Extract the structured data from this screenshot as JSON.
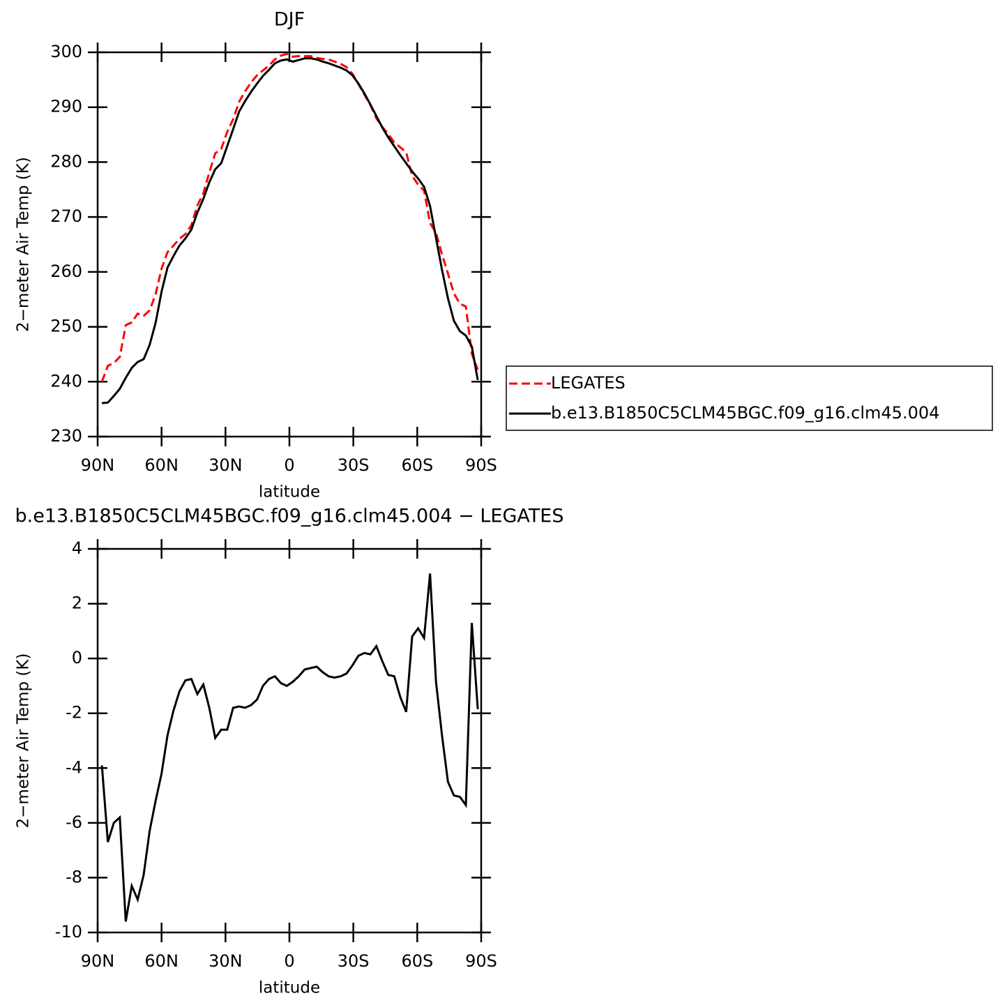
{
  "chart_data": [
    {
      "type": "line",
      "title": "DJF",
      "x_label": "latitude",
      "y_label": "2−meter Air Temp (K)",
      "x": [
        88,
        85.2,
        82.4,
        79.6,
        76.8,
        74,
        71.2,
        68.4,
        65.6,
        62.8,
        60,
        57.2,
        54.4,
        51.6,
        48.8,
        46,
        43.2,
        40.4,
        37.6,
        34.8,
        32,
        29.2,
        26.4,
        23.6,
        20.8,
        18,
        15.2,
        12.4,
        9.6,
        6.8,
        4,
        1.2,
        -1.6,
        -4.4,
        -7.2,
        -10,
        -12.8,
        -15.6,
        -18.4,
        -21.2,
        -24,
        -26.8,
        -29.6,
        -32.4,
        -35.2,
        -38,
        -40.8,
        -43.6,
        -46.4,
        -49.2,
        -52,
        -54.8,
        -57.6,
        -60.4,
        -63.2,
        -66,
        -68.8,
        -71.6,
        -74.4,
        -77.2,
        -80,
        -82.8,
        -85.6,
        -88.4
      ],
      "xlim": [
        90,
        -90
      ],
      "xticks": [
        {
          "value": 90,
          "label": "90N"
        },
        {
          "value": 60,
          "label": "60N"
        },
        {
          "value": 30,
          "label": "30N"
        },
        0,
        {
          "value": -30,
          "label": "30S"
        },
        {
          "value": -60,
          "label": "60S"
        },
        {
          "value": -90,
          "label": "90S"
        }
      ],
      "ylim": [
        230,
        300
      ],
      "yticks": [
        230,
        240,
        250,
        260,
        270,
        280,
        290,
        300
      ],
      "legend": "right",
      "series": [
        {
          "name": "LEGATES",
          "color": "#ff0000",
          "dashed": true,
          "values": [
            240.0,
            242.9,
            243.4,
            244.5,
            250.3,
            250.8,
            252.4,
            252.0,
            253.0,
            255.9,
            260.6,
            263.6,
            264.8,
            266.0,
            266.9,
            268.5,
            272.1,
            274.3,
            278.1,
            281.6,
            282.4,
            285.5,
            287.8,
            291.0,
            292.9,
            294.5,
            295.8,
            296.7,
            297.6,
            298.7,
            299.4,
            299.7,
            299.2,
            299.3,
            299.3,
            299.3,
            299.0,
            298.8,
            298.7,
            298.3,
            297.9,
            297.3,
            296.1,
            294.2,
            292.3,
            290.4,
            288.0,
            286.4,
            285.1,
            283.6,
            282.7,
            281.8,
            277.5,
            275.9,
            274.8,
            268.9,
            267.1,
            263.2,
            259.7,
            256.1,
            254.2,
            253.7,
            245.1,
            242.2
          ]
        },
        {
          "name": "b.e13.B1850C5CLM45BGC.f09_g16.clm45.004",
          "color": "#000000",
          "dashed": false,
          "values": [
            236.1,
            236.2,
            237.4,
            238.7,
            240.7,
            242.5,
            243.6,
            244.1,
            246.7,
            250.7,
            256.4,
            260.8,
            262.9,
            264.8,
            266.1,
            267.7,
            270.8,
            273.3,
            276.3,
            278.7,
            279.8,
            282.9,
            286.0,
            289.2,
            291.1,
            292.8,
            294.3,
            295.7,
            296.8,
            298.0,
            298.5,
            298.7,
            298.3,
            298.6,
            298.9,
            298.9,
            298.7,
            298.3,
            298.0,
            297.6,
            297.2,
            296.7,
            295.8,
            294.3,
            292.5,
            290.5,
            288.4,
            286.3,
            284.5,
            282.9,
            281.3,
            279.8,
            278.3,
            277.0,
            275.5,
            272.0,
            266.2,
            260.4,
            255.2,
            251.1,
            249.2,
            248.4,
            246.4,
            240.3
          ]
        }
      ]
    },
    {
      "type": "line",
      "title": "b.e13.B1850C5CLM45BGC.f09_g16.clm45.004 − LEGATES",
      "x_label": "latitude",
      "y_label": "2−meter Air Temp (K)",
      "x": [
        88,
        85.2,
        82.4,
        79.6,
        76.8,
        74,
        71.2,
        68.4,
        65.6,
        62.8,
        60,
        57.2,
        54.4,
        51.6,
        48.8,
        46,
        43.2,
        40.4,
        37.6,
        34.8,
        32,
        29.2,
        26.4,
        23.6,
        20.8,
        18,
        15.2,
        12.4,
        9.6,
        6.8,
        4,
        1.2,
        -1.6,
        -4.4,
        -7.2,
        -10,
        -12.8,
        -15.6,
        -18.4,
        -21.2,
        -24,
        -26.8,
        -29.6,
        -32.4,
        -35.2,
        -38,
        -40.8,
        -43.6,
        -46.4,
        -49.2,
        -52,
        -54.8,
        -57.6,
        -60.4,
        -63.2,
        -66,
        -68.8,
        -71.6,
        -74.4,
        -77.2,
        -80,
        -82.8,
        -85.6,
        -88.4
      ],
      "xlim": [
        90,
        -90
      ],
      "xticks": [
        {
          "value": 90,
          "label": "90N"
        },
        {
          "value": 60,
          "label": "60N"
        },
        {
          "value": 30,
          "label": "30N"
        },
        0,
        {
          "value": -30,
          "label": "30S"
        },
        {
          "value": -60,
          "label": "60S"
        },
        {
          "value": -90,
          "label": "90S"
        }
      ],
      "ylim": [
        -10,
        4
      ],
      "yticks": [
        -10,
        -8,
        -6,
        -4,
        -2,
        0,
        2,
        4
      ],
      "color": "#000000",
      "values": [
        -3.9,
        -6.7,
        -6.0,
        -5.8,
        -9.6,
        -8.3,
        -8.8,
        -7.9,
        -6.3,
        -5.2,
        -4.2,
        -2.8,
        -1.9,
        -1.2,
        -0.8,
        -0.75,
        -1.3,
        -0.95,
        -1.8,
        -2.9,
        -2.6,
        -2.6,
        -1.8,
        -1.75,
        -1.8,
        -1.7,
        -1.5,
        -1.0,
        -0.75,
        -0.65,
        -0.9,
        -1.0,
        -0.85,
        -0.65,
        -0.4,
        -0.35,
        -0.3,
        -0.5,
        -0.65,
        -0.7,
        -0.65,
        -0.55,
        -0.25,
        0.1,
        0.2,
        0.15,
        0.45,
        -0.1,
        -0.6,
        -0.65,
        -1.4,
        -1.95,
        0.8,
        1.1,
        0.75,
        3.1,
        -0.85,
        -2.8,
        -4.5,
        -5.0,
        -5.05,
        -5.35,
        1.3,
        -1.85
      ]
    }
  ]
}
